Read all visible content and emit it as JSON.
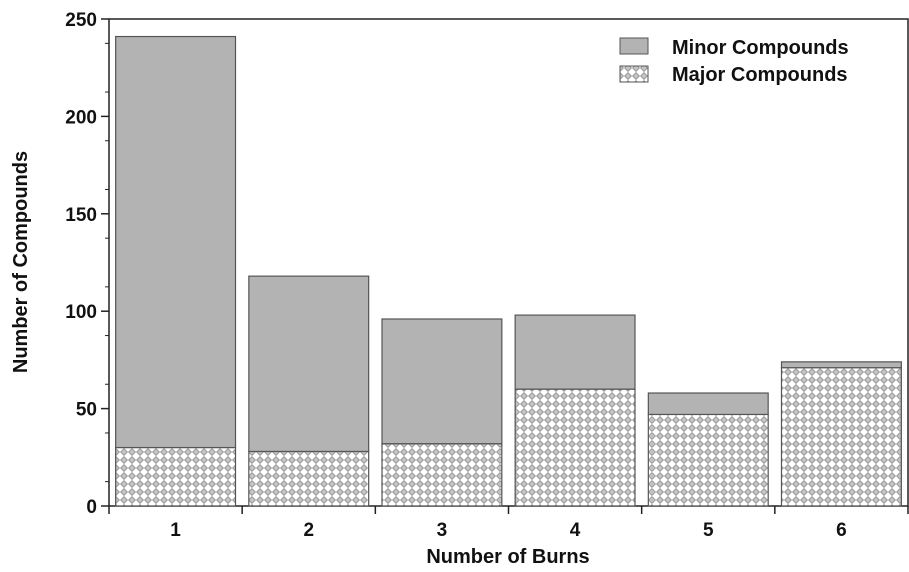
{
  "chart_data": {
    "type": "bar",
    "stacked": true,
    "categories": [
      "1",
      "2",
      "3",
      "4",
      "5",
      "6"
    ],
    "series": [
      {
        "name": "Major Compounds",
        "values": [
          30,
          28,
          32,
          60,
          47,
          71
        ],
        "color": "#ffffff",
        "pattern": "diamond-crosshatch"
      },
      {
        "name": "Minor Compounds",
        "values": [
          211,
          90,
          64,
          38,
          11,
          3
        ],
        "color": "#b3b3b3"
      }
    ],
    "title": "",
    "xlabel": "Number of Burns",
    "ylabel": "Number of Compounds",
    "ylim": [
      0,
      250
    ],
    "yticks": [
      "0",
      "50",
      "100",
      "150",
      "200",
      "250"
    ],
    "grid": false,
    "legend_position": "top-right",
    "legend": [
      "Minor Compounds",
      "Major Compounds"
    ]
  }
}
